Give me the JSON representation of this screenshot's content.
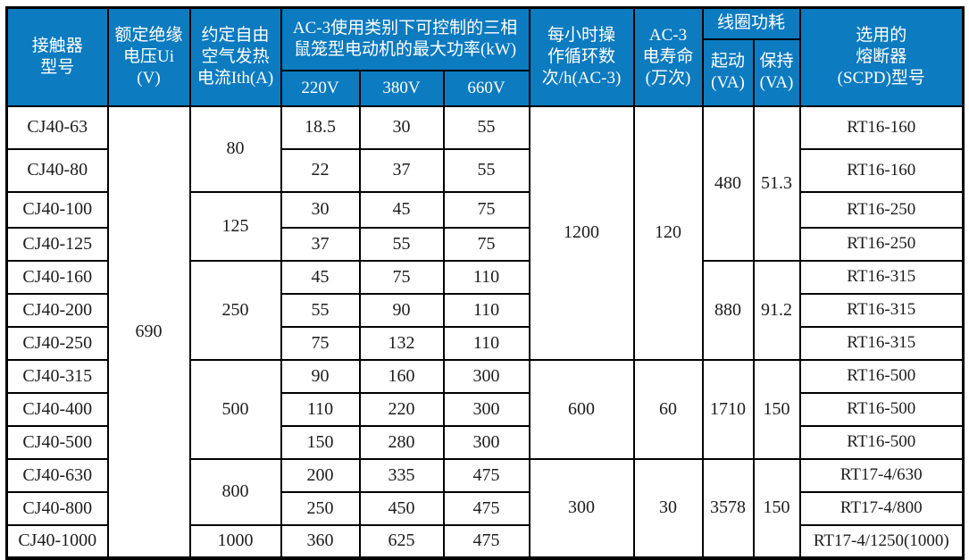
{
  "table": {
    "header": {
      "model": "接触器\n型号",
      "voltage": "额定绝缘\n电压Ui (V)",
      "ith": "约定自由\n空气发热\n电流Ith(A)",
      "power_group": "AC-3使用类别下可控制的三相\n鼠笼型电动机的最大功率(kW)",
      "power_cols": [
        "220V",
        "380V",
        "660V"
      ],
      "ops": "每小时操\n作循环数\n次/h(AC-3)",
      "life": "AC-3\n电寿命\n(万次)",
      "coil_group": "线圈功耗",
      "coil_start": "起动\n(VA)",
      "coil_hold": "保持\n(VA)",
      "fuse": "选用的\n熔断器\n(SCPD)型号"
    },
    "voltage_value": "690",
    "ith_groups": [
      {
        "value": "80",
        "rows": 2
      },
      {
        "value": "125",
        "rows": 2
      },
      {
        "value": "250",
        "rows": 3
      },
      {
        "value": "500",
        "rows": 3
      },
      {
        "value": "800",
        "rows": 2
      },
      {
        "value": "1000",
        "rows": 1
      }
    ],
    "ops_groups": [
      {
        "ops": "1200",
        "life": "120",
        "rows": 7
      },
      {
        "ops": "600",
        "life": "60",
        "rows": 3
      },
      {
        "ops": "300",
        "life": "30",
        "rows": 3
      }
    ],
    "coil_groups": [
      {
        "start": "480",
        "hold": "51.3",
        "rows": 4
      },
      {
        "start": "880",
        "hold": "91.2",
        "rows": 3
      },
      {
        "start": "1710",
        "hold": "150",
        "rows": 3
      },
      {
        "start": "3578",
        "hold": "150",
        "rows": 3
      }
    ],
    "rows": [
      {
        "model": "CJ40-63",
        "p220": "18.5",
        "p380": "30",
        "p660": "55",
        "fuse": "RT16-160"
      },
      {
        "model": "CJ40-80",
        "p220": "22",
        "p380": "37",
        "p660": "55",
        "fuse": "RT16-160"
      },
      {
        "model": "CJ40-100",
        "p220": "30",
        "p380": "45",
        "p660": "75",
        "fuse": "RT16-250"
      },
      {
        "model": "CJ40-125",
        "p220": "37",
        "p380": "55",
        "p660": "75",
        "fuse": "RT16-250"
      },
      {
        "model": "CJ40-160",
        "p220": "45",
        "p380": "75",
        "p660": "110",
        "fuse": "RT16-315"
      },
      {
        "model": "CJ40-200",
        "p220": "55",
        "p380": "90",
        "p660": "110",
        "fuse": "RT16-315"
      },
      {
        "model": "CJ40-250",
        "p220": "75",
        "p380": "132",
        "p660": "110",
        "fuse": "RT16-315"
      },
      {
        "model": "CJ40-315",
        "p220": "90",
        "p380": "160",
        "p660": "300",
        "fuse": "RT16-500"
      },
      {
        "model": "CJ40-400",
        "p220": "110",
        "p380": "220",
        "p660": "300",
        "fuse": "RT16-500"
      },
      {
        "model": "CJ40-500",
        "p220": "150",
        "p380": "280",
        "p660": "300",
        "fuse": "RT16-500"
      },
      {
        "model": "CJ40-630",
        "p220": "200",
        "p380": "335",
        "p660": "475",
        "fuse": "RT17-4/630"
      },
      {
        "model": "CJ40-800",
        "p220": "250",
        "p380": "450",
        "p660": "475",
        "fuse": "RT17-4/800"
      },
      {
        "model": "CJ40-1000",
        "p220": "360",
        "p380": "625",
        "p660": "475",
        "fuse": "RT17-4/1250(1000)"
      }
    ],
    "colors": {
      "header_bg": "#0c7bc0",
      "header_text": "#ffffff",
      "border": "#000000",
      "body_text": "#1c1c1c"
    }
  }
}
